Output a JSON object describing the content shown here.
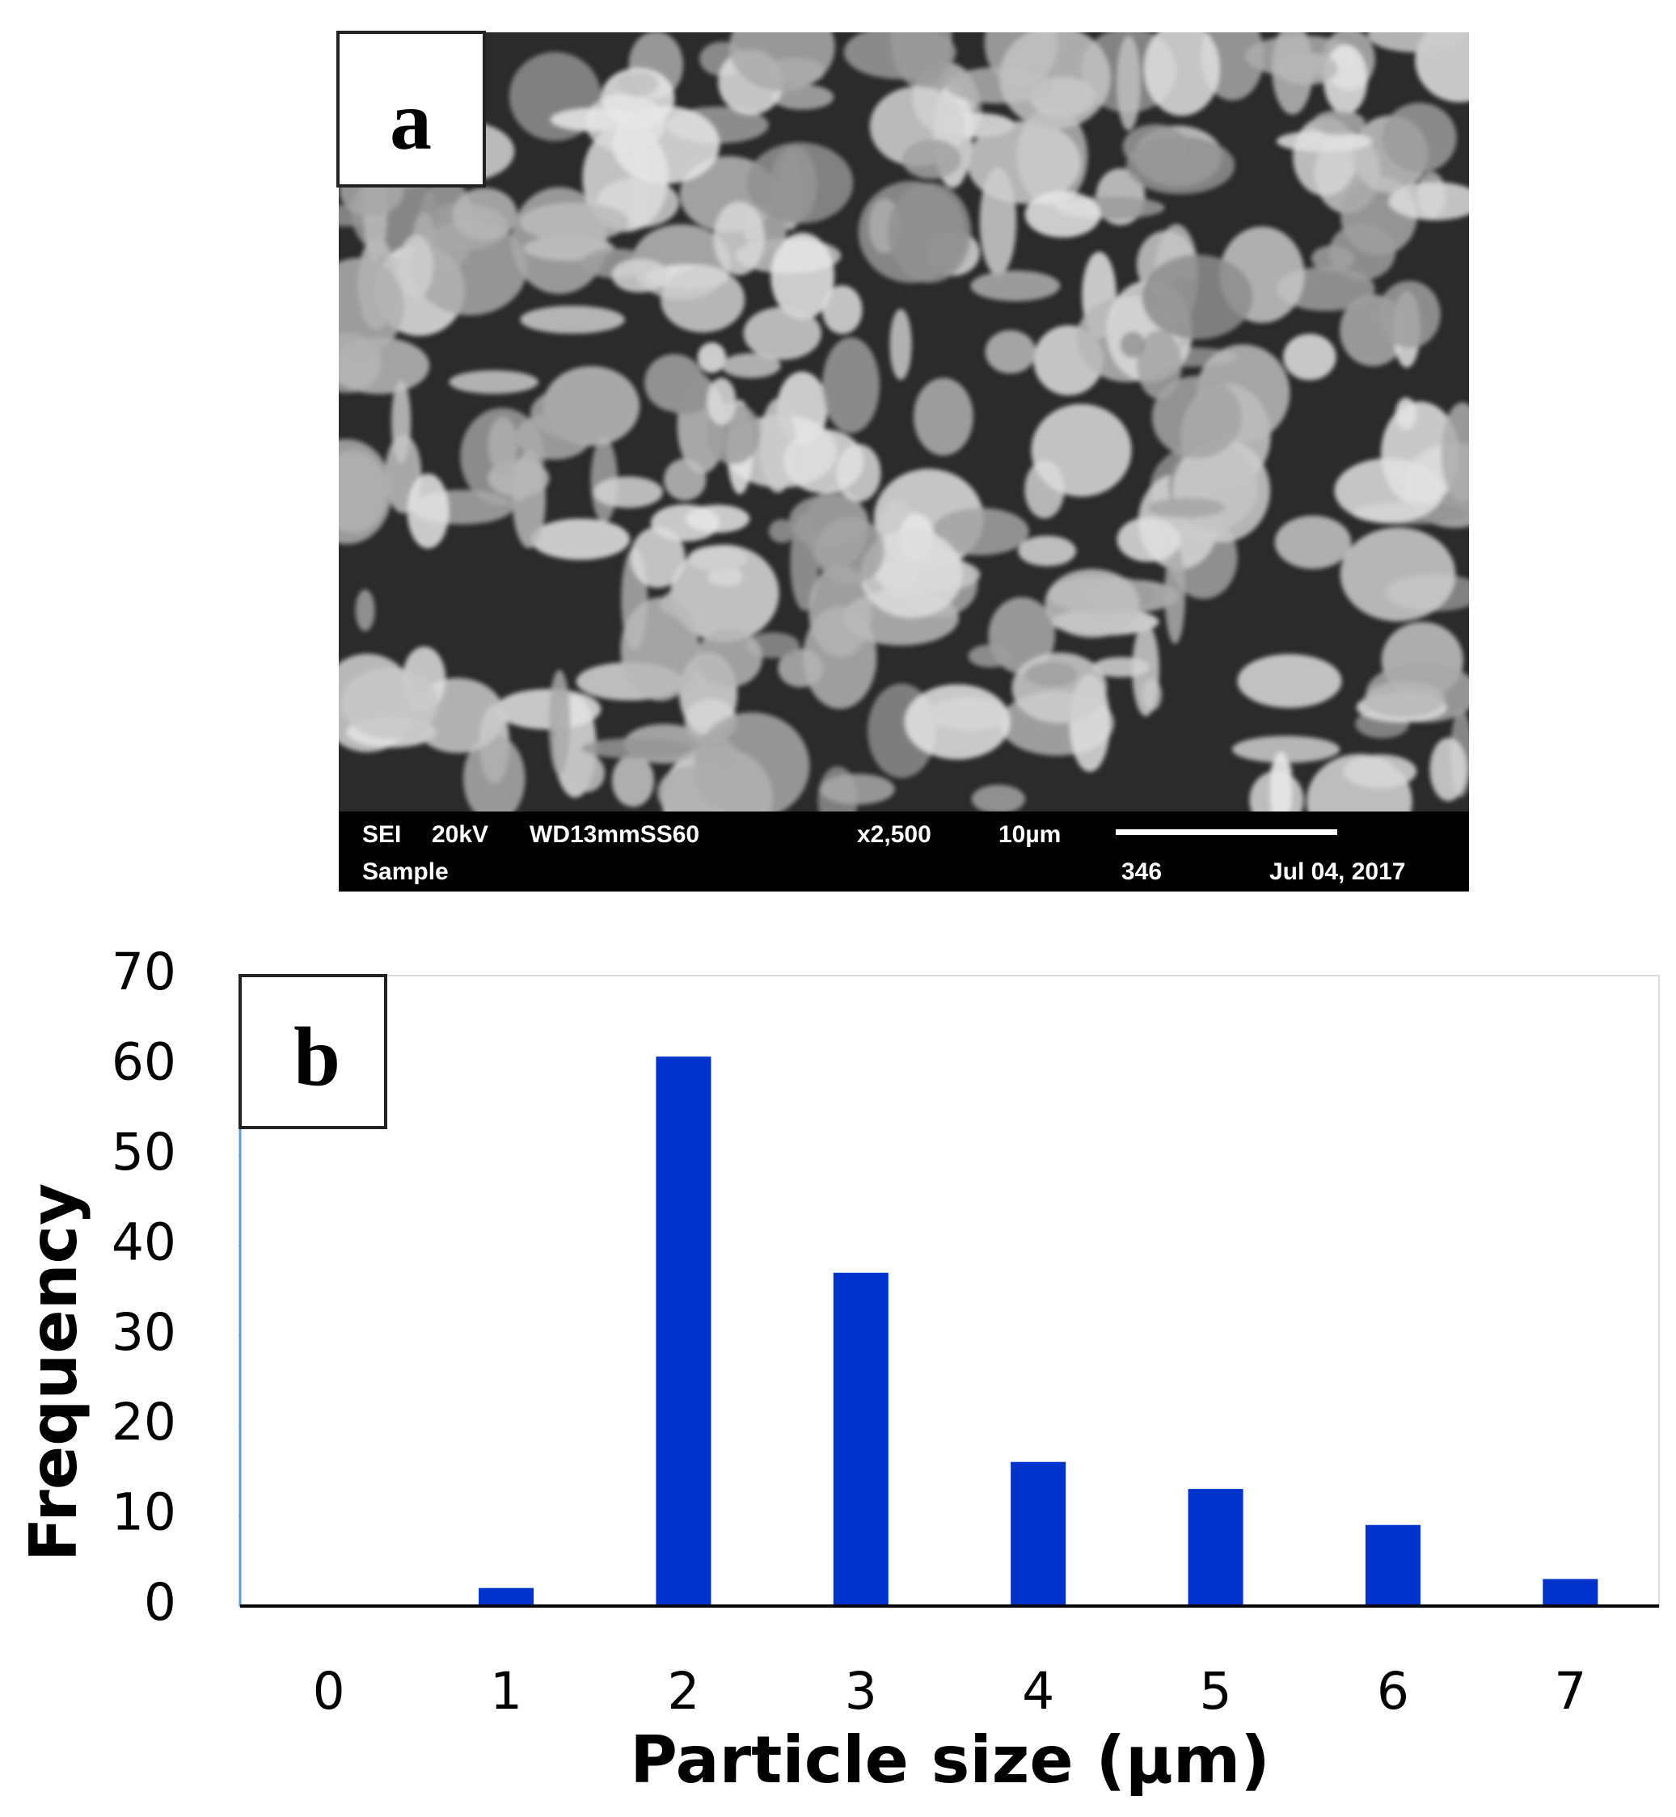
{
  "panel_a": {
    "label": "a",
    "info": [
      "SEI",
      "20kV",
      "WD13mmSS60",
      "x2,500",
      "10µm",
      "Sample",
      "346",
      "Jul 04, 2017"
    ]
  },
  "chart_data": {
    "type": "bar",
    "panel_label": "b",
    "xlabel": "Particle size (µm)",
    "ylabel": "Frequency",
    "categories": [
      "0",
      "1",
      "2",
      "3",
      "4",
      "5",
      "6",
      "7"
    ],
    "values": [
      0,
      2,
      61,
      37,
      16,
      13,
      9,
      3
    ],
    "color": "#0033cc",
    "ylim": [
      0,
      70
    ],
    "yticks": [
      0,
      10,
      20,
      30,
      40,
      50,
      60,
      70
    ]
  }
}
